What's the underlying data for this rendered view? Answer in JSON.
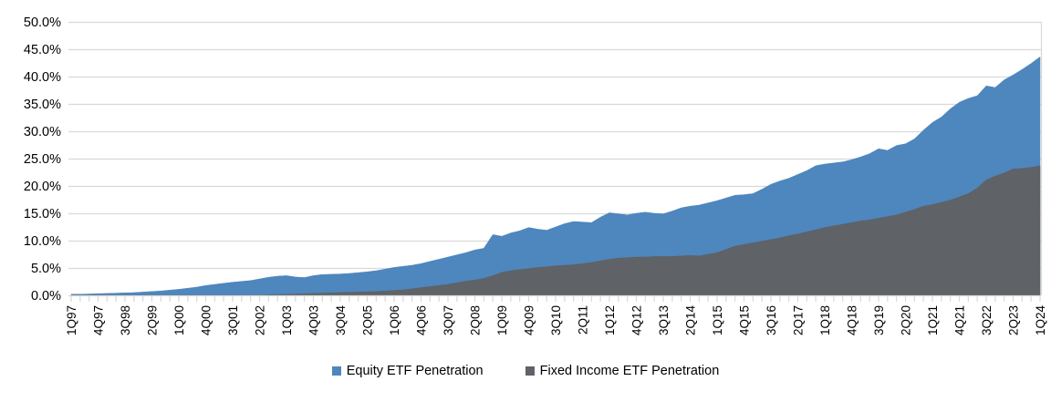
{
  "chart_data": {
    "type": "area",
    "mode": "overlaid",
    "title": "",
    "xlabel": "",
    "ylabel": "",
    "ylim": [
      0,
      50
    ],
    "y_tick_labels": [
      "0.0%",
      "5.0%",
      "10.0%",
      "15.0%",
      "20.0%",
      "25.0%",
      "30.0%",
      "35.0%",
      "40.0%",
      "45.0%",
      "50.0%"
    ],
    "x_start": "1Q97",
    "x_end": "1Q24",
    "x_frequency": "quarterly",
    "x_tick_interval_quarters": 3,
    "x_tick_labels": [
      "1Q97",
      "4Q97",
      "3Q98",
      "2Q99",
      "1Q00",
      "4Q00",
      "3Q01",
      "2Q02",
      "1Q03",
      "4Q03",
      "3Q04",
      "2Q05",
      "1Q06",
      "4Q06",
      "3Q07",
      "2Q08",
      "1Q09",
      "4Q09",
      "3Q10",
      "2Q11",
      "1Q12",
      "4Q12",
      "3Q13",
      "2Q14",
      "1Q15",
      "4Q15",
      "3Q16",
      "2Q17",
      "1Q18",
      "4Q18",
      "3Q19",
      "2Q20",
      "1Q21",
      "4Q21",
      "3Q22",
      "2Q23",
      "1Q24"
    ],
    "grid": "horizontal",
    "legend_position": "bottom-center",
    "series": [
      {
        "name": "Equity ETF Penetration",
        "color": "#4E86BE",
        "values": [
          0.2,
          0.2,
          0.25,
          0.3,
          0.35,
          0.4,
          0.45,
          0.5,
          0.6,
          0.7,
          0.8,
          0.95,
          1.1,
          1.3,
          1.5,
          1.8,
          2.0,
          2.2,
          2.4,
          2.55,
          2.7,
          3.0,
          3.3,
          3.5,
          3.6,
          3.35,
          3.25,
          3.6,
          3.8,
          3.85,
          3.9,
          4.0,
          4.15,
          4.3,
          4.5,
          4.8,
          5.1,
          5.3,
          5.5,
          5.8,
          6.2,
          6.6,
          7.0,
          7.4,
          7.8,
          8.3,
          8.6,
          11.1,
          10.8,
          11.4,
          11.8,
          12.4,
          12.1,
          11.9,
          12.5,
          13.1,
          13.5,
          13.4,
          13.3,
          14.3,
          15.1,
          14.9,
          14.7,
          15.0,
          15.2,
          15.0,
          14.9,
          15.4,
          16.0,
          16.3,
          16.5,
          16.9,
          17.3,
          17.8,
          18.3,
          18.4,
          18.6,
          19.4,
          20.3,
          20.9,
          21.4,
          22.1,
          22.8,
          23.7,
          24.0,
          24.2,
          24.4,
          24.8,
          25.3,
          25.9,
          26.8,
          26.5,
          27.4,
          27.7,
          28.6,
          30.2,
          31.6,
          32.6,
          34.1,
          35.3,
          36.0,
          36.5,
          38.3,
          38.0,
          39.4,
          40.3,
          41.3,
          42.4,
          43.6
        ]
      },
      {
        "name": "Fixed Income ETF Penetration",
        "color": "#5F6266",
        "values": [
          0,
          0,
          0,
          0,
          0,
          0,
          0,
          0,
          0,
          0,
          0,
          0,
          0,
          0,
          0,
          0,
          0,
          0,
          0,
          0,
          0,
          0,
          0.1,
          0.15,
          0.2,
          0.25,
          0.3,
          0.35,
          0.4,
          0.45,
          0.5,
          0.55,
          0.6,
          0.65,
          0.7,
          0.8,
          0.9,
          1.0,
          1.2,
          1.4,
          1.6,
          1.8,
          2.0,
          2.3,
          2.6,
          2.8,
          3.1,
          3.6,
          4.2,
          4.5,
          4.7,
          4.9,
          5.1,
          5.2,
          5.4,
          5.5,
          5.6,
          5.8,
          6.0,
          6.3,
          6.6,
          6.8,
          6.9,
          7.0,
          7.0,
          7.1,
          7.1,
          7.1,
          7.2,
          7.3,
          7.2,
          7.5,
          7.8,
          8.4,
          9.0,
          9.3,
          9.6,
          9.9,
          10.2,
          10.5,
          10.9,
          11.2,
          11.6,
          12.0,
          12.4,
          12.7,
          13.0,
          13.3,
          13.6,
          13.8,
          14.1,
          14.4,
          14.7,
          15.2,
          15.7,
          16.3,
          16.6,
          17.0,
          17.4,
          18.0,
          18.6,
          19.6,
          21.1,
          21.8,
          22.4,
          23.1,
          23.2,
          23.4,
          23.7
        ]
      }
    ]
  },
  "legend": {
    "items": [
      {
        "label": "Equity ETF Penetration",
        "color": "#4E86BE"
      },
      {
        "label": "Fixed Income ETF Penetration",
        "color": "#5F6266"
      }
    ]
  },
  "style": {
    "gridline_color": "#D9D9D9",
    "tick_color": "#D9D9D9",
    "text_color": "#000000",
    "background": "#FFFFFF"
  }
}
